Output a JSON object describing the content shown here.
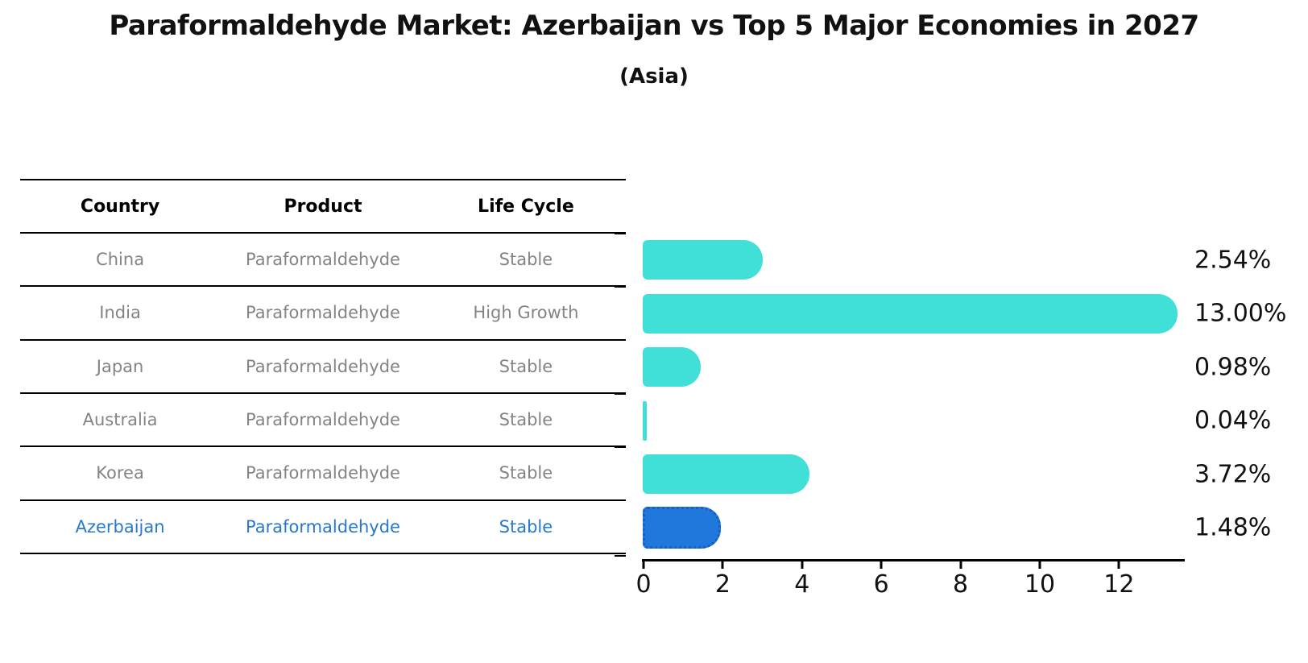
{
  "title": "Paraformaldehyde Market: Azerbaijan vs Top 5 Major Economies in 2027",
  "subtitle": "(Asia)",
  "table": {
    "headers": [
      "Country",
      "Product",
      "Life Cycle"
    ],
    "rows": [
      {
        "country": "China",
        "product": "Paraformaldehyde",
        "life_cycle": "Stable"
      },
      {
        "country": "India",
        "product": "Paraformaldehyde",
        "life_cycle": "High Growth"
      },
      {
        "country": "Japan",
        "product": "Paraformaldehyde",
        "life_cycle": "Stable"
      },
      {
        "country": "Australia",
        "product": "Paraformaldehyde",
        "life_cycle": "Stable"
      },
      {
        "country": "Korea",
        "product": "Paraformaldehyde",
        "life_cycle": "Stable"
      },
      {
        "country": "Azerbaijan",
        "product": "Paraformaldehyde",
        "life_cycle": "Stable"
      }
    ],
    "highlight_row": "Azerbaijan"
  },
  "chart_data": {
    "type": "bar",
    "orientation": "horizontal",
    "categories": [
      "China",
      "India",
      "Japan",
      "Australia",
      "Korea",
      "Azerbaijan"
    ],
    "values": [
      2.54,
      13.0,
      0.98,
      0.04,
      3.72,
      1.48
    ],
    "value_labels": [
      "2.54%",
      "13.00%",
      "0.98%",
      "0.04%",
      "3.72%",
      "1.48%"
    ],
    "x_ticks": [
      "0",
      "2",
      "4",
      "6",
      "8",
      "10",
      "12"
    ],
    "xlim": [
      0,
      13.7
    ],
    "units": "percent",
    "grid": "off",
    "legend": "none",
    "bar_color": "#40E0D8",
    "highlight_index": 5,
    "highlight_bar_color": "#2078DC",
    "highlight_border_color": "#1A5FC0",
    "highlight_text_color": "#2878CC"
  }
}
